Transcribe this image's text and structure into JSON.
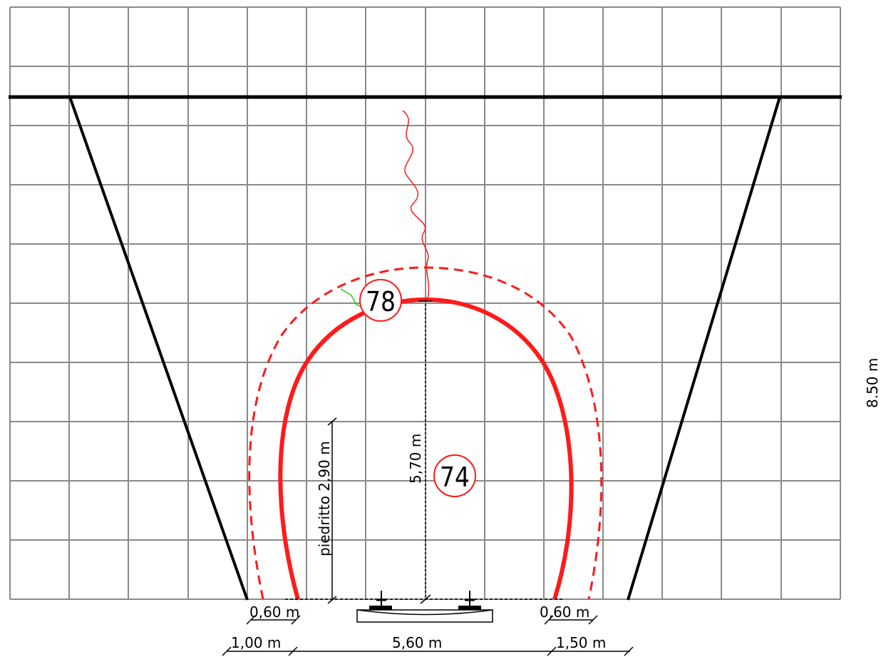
{
  "labels": {
    "section_outer": "78",
    "section_inner": "74",
    "height_crown": "5,70  m",
    "pier_height": "piedritto  2,90  m",
    "right_height": "8.50  m",
    "dim_left_inner": "0,60  m",
    "dim_right_inner": "0,60  m",
    "dim_left_outer": "1,00  m",
    "dim_center": "5,60  m",
    "dim_right_outer": "1,50  m"
  },
  "colors": {
    "grid": "#8a8a8a",
    "structure": "#000000",
    "profile": "#ff1a1a",
    "marker": "#22cc22"
  }
}
